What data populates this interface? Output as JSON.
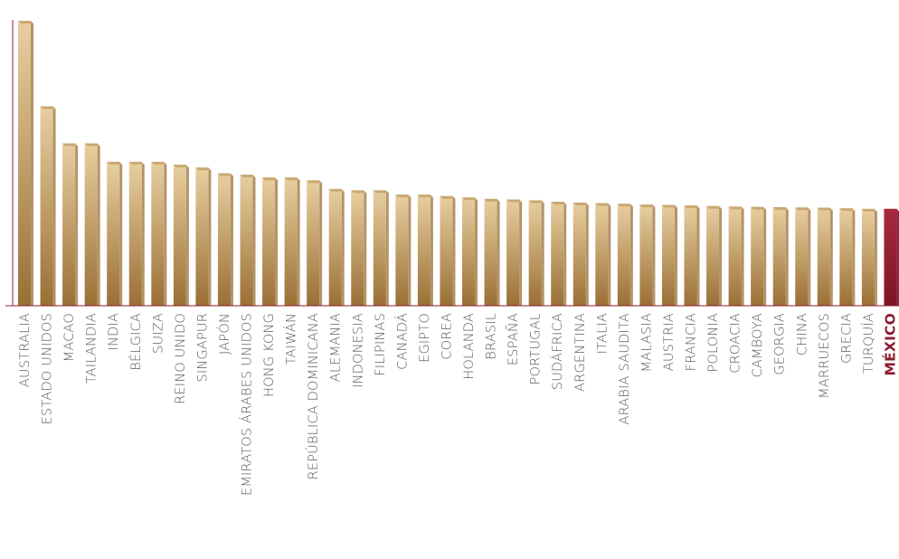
{
  "chart_data": {
    "type": "bar",
    "title": "",
    "xlabel": "",
    "ylabel": "",
    "ylim": [
      0,
      100
    ],
    "grid": false,
    "legend": "none",
    "categories": [
      "AUSTRALIA",
      "ESTADO UNIDOS",
      "MACAO",
      "TAILANDIA",
      "INDIA",
      "BÉLGICA",
      "SUIZA",
      "REINO UNIDO",
      "SINGAPUR",
      "JAPÓN",
      "EMIRATOS ÁRABES UNIDOS",
      "HONG KONG",
      "TAIWÁN",
      "REPÚBLICA DOMINICANA",
      "ALEMANIA",
      "INDONESIA",
      "FILIPINAS",
      "CANADÁ",
      "EGIPTO",
      "COREA",
      "HOLANDA",
      "BRASIL",
      "ESPAÑA",
      "PORTUGAL",
      "SUDÁFRICA",
      "ARGENTINA",
      "ITALIA",
      "ARABIA SAUDITA",
      "MALASIA",
      "AUSTRIA",
      "FRANCIA",
      "POLONIA",
      "CROACIA",
      "CAMBOYA",
      "GEORGIA",
      "CHINA",
      "MARRUECOS",
      "GRECIA",
      "TURQUÍA",
      "MÉXICO"
    ],
    "values": [
      100,
      70,
      57,
      57,
      50.5,
      50.5,
      50.5,
      49.5,
      48.5,
      46.5,
      46,
      45,
      45,
      44,
      41,
      40.5,
      40.5,
      39,
      39,
      38.5,
      38,
      37.5,
      37.3,
      37,
      36.5,
      36.2,
      36,
      35.8,
      35.5,
      35.4,
      35.2,
      35,
      34.8,
      34.7,
      34.6,
      34.5,
      34.4,
      34.2,
      34,
      34
    ],
    "highlight": "MÉXICO",
    "colors": {
      "bar_light": "#e8cfa0",
      "bar_dark": "#9a6f35",
      "bar_side": "#c9a873",
      "highlight_light": "#a82a3e",
      "highlight_dark": "#7e1426",
      "axis": "#8c1d2e",
      "label": "#5a5a5a",
      "highlight_label": "#8c1d2e"
    }
  }
}
